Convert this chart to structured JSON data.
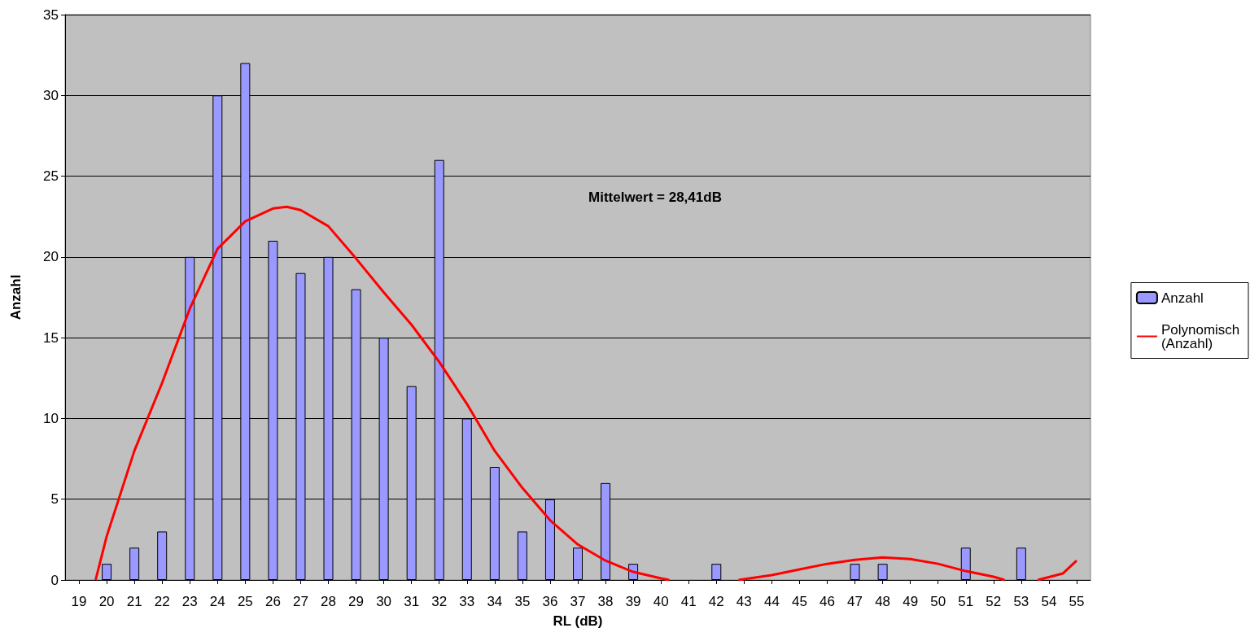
{
  "chart_data": {
    "type": "bar",
    "xlabel": "RL (dB)",
    "ylabel": "Anzahl",
    "x": [
      19,
      20,
      21,
      22,
      23,
      24,
      25,
      26,
      27,
      28,
      29,
      30,
      31,
      32,
      33,
      34,
      35,
      36,
      37,
      38,
      39,
      40,
      41,
      42,
      43,
      44,
      45,
      46,
      47,
      48,
      49,
      50,
      51,
      52,
      53,
      54,
      55
    ],
    "xlim": [
      18.5,
      55.5
    ],
    "xticks": [
      19,
      20,
      21,
      22,
      23,
      24,
      25,
      26,
      27,
      28,
      29,
      30,
      31,
      32,
      33,
      34,
      35,
      36,
      37,
      38,
      39,
      40,
      41,
      42,
      43,
      44,
      45,
      46,
      47,
      48,
      49,
      50,
      51,
      52,
      53,
      54,
      55
    ],
    "ylim": [
      0,
      35
    ],
    "yticks": [
      0,
      5,
      10,
      15,
      20,
      25,
      30,
      35
    ],
    "grid": "y",
    "legend": "right",
    "annotations": [
      "Mittelwert = 28,41dB"
    ],
    "series": [
      {
        "name": "Anzahl",
        "color": "#9999ff",
        "values": [
          0,
          1,
          2,
          3,
          20,
          30,
          32,
          21,
          19,
          20,
          18,
          15,
          12,
          26,
          10,
          7,
          3,
          5,
          2,
          6,
          1,
          0,
          0,
          1,
          0,
          0,
          0,
          0,
          1,
          1,
          0,
          0,
          2,
          0,
          2,
          0,
          0
        ]
      },
      {
        "name": "Polynomisch (Anzahl)",
        "type": "line",
        "color": "#ff0000",
        "marker": "none",
        "x": [
          19.6,
          20,
          21,
          22,
          23,
          24,
          25,
          26,
          26.5,
          27,
          28,
          29,
          30,
          31,
          32,
          33,
          34,
          35,
          36,
          37,
          38,
          39,
          40,
          40.3,
          41.5,
          42.8,
          44,
          45,
          46,
          47,
          48,
          49,
          50,
          51,
          52,
          52.4,
          53,
          53.6,
          54.5,
          55
        ],
        "values": [
          0,
          2.7,
          8,
          12.2,
          16.8,
          20.5,
          22.2,
          23,
          23.1,
          22.9,
          21.9,
          19.9,
          17.8,
          15.8,
          13.5,
          10.9,
          8,
          5.7,
          3.7,
          2.2,
          1.2,
          0.5,
          0.1,
          0,
          null,
          0,
          0.3,
          0.65,
          1,
          1.25,
          1.4,
          1.3,
          1,
          0.55,
          0.2,
          0,
          null,
          0,
          0.4,
          1.2
        ]
      }
    ]
  }
}
